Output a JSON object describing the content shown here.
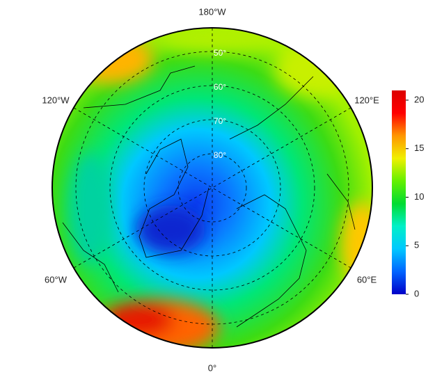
{
  "map": {
    "longitude_labels": [
      "180°W",
      "120°E",
      "60°E",
      "0°",
      "60°W",
      "120°W"
    ],
    "latitude_labels": [
      "50°",
      "60°",
      "70°",
      "80°"
    ],
    "colorbar": {
      "lim": [
        0,
        21
      ],
      "ticks": [
        0,
        5,
        10,
        15,
        20
      ],
      "colors": [
        "#0000c8",
        "#0064ff",
        "#00c8ff",
        "#00f0c8",
        "#00dc32",
        "#64f000",
        "#f0f000",
        "#ff9600",
        "#ff0000",
        "#dc0000"
      ]
    }
  }
}
